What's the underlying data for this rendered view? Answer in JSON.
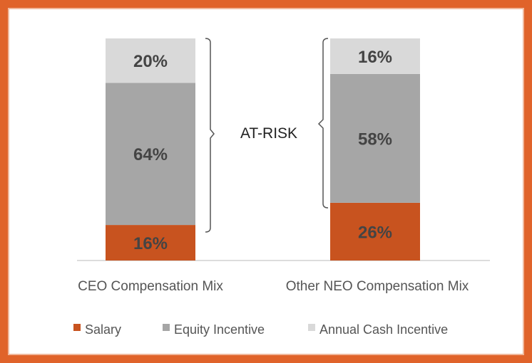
{
  "chart_data": {
    "type": "bar",
    "stacked": true,
    "categories": [
      "CEO Compensation Mix",
      "Other NEO Compensation Mix"
    ],
    "series": [
      {
        "name": "Salary",
        "color": "#c8531f",
        "values": [
          16,
          26
        ],
        "labels": [
          "16%",
          "26%"
        ]
      },
      {
        "name": "Equity Incentive",
        "color": "#a6a6a6",
        "values": [
          64,
          58
        ],
        "labels": [
          "64%",
          "58%"
        ]
      },
      {
        "name": "Annual Cash Incentive",
        "color": "#d9d9d9",
        "values": [
          20,
          16
        ],
        "labels": [
          "20%",
          "16%"
        ]
      }
    ],
    "ylim": [
      0,
      100
    ],
    "annotation": "AT-RISK",
    "legend_position": "bottom",
    "grid": false
  },
  "colors": {
    "frame": "#e0632a",
    "salary": "#c8531f",
    "equity": "#a6a6a6",
    "cash": "#d9d9d9"
  }
}
